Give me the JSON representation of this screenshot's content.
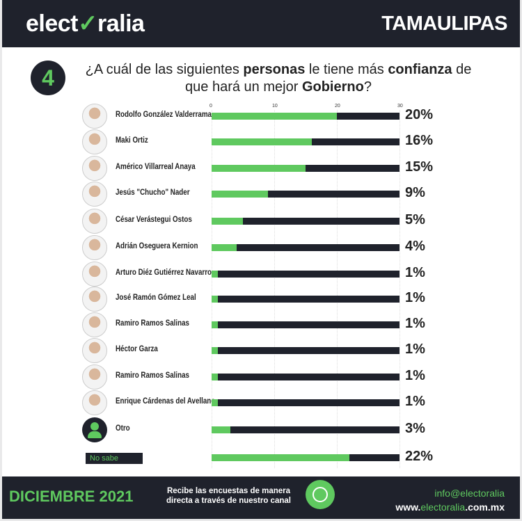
{
  "header": {
    "logo_pre": "elect",
    "logo_mark": "✓",
    "logo_post": "ralia",
    "state": "TAMAULIPAS"
  },
  "question": {
    "number": "4",
    "parts": [
      "¿A cuál de las siguientes ",
      "personas",
      " le tiene más ",
      "confianza",
      " de que hará un mejor ",
      "Gobierno",
      "?"
    ]
  },
  "chart_data": {
    "type": "bar",
    "orientation": "horizontal",
    "xlim": [
      0,
      30
    ],
    "xticks": [
      "0",
      "10",
      "20",
      "30"
    ],
    "colors": {
      "value": "#5fc95f",
      "track": "#1f222c"
    },
    "categories": [
      "Rodolfo González Valderrama",
      "Maki Ortiz",
      "Américo Villarreal Anaya",
      "Jesús \"Chucho\" Nader",
      "César Verástegui Ostos",
      "Adrián Oseguera Kernion",
      "Arturo Diéz Gutiérrez Navarro",
      "José Ramón Gómez Leal",
      "Ramiro Ramos Salinas",
      "Héctor Garza",
      "Ramiro Ramos Salinas",
      "Enrique Cárdenas del Avellano",
      "Otro",
      "No sabe"
    ],
    "values": [
      20,
      16,
      15,
      9,
      5,
      4,
      1,
      1,
      1,
      1,
      1,
      1,
      3,
      22
    ],
    "labels": [
      "20%",
      "16%",
      "15%",
      "9%",
      "5%",
      "4%",
      "1%",
      "1%",
      "1%",
      "1%",
      "1%",
      "1%",
      "3%",
      "22%"
    ]
  },
  "footer": {
    "month": "DICIEMBRE 2021",
    "recibe_1": "Recibe las encuestas de manera",
    "recibe_2": "directa a través de nuestro canal",
    "email_a": "info@",
    "email_b": "electoralia",
    ".com": ".com.mx",
    "web_a": "www.",
    "web_b": "electoralia",
    "web_c": ".com.mx"
  }
}
